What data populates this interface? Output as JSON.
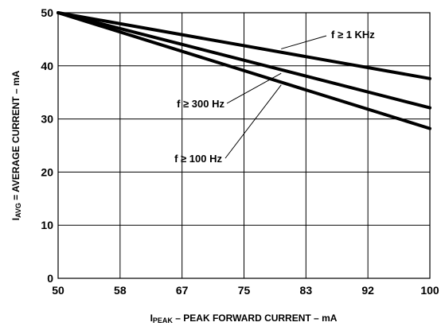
{
  "chart_data": {
    "type": "line",
    "x_ticks": [
      "50",
      "58",
      "67",
      "75",
      "83",
      "92",
      "100"
    ],
    "y_ticks": [
      "0",
      "10",
      "20",
      "30",
      "40",
      "50"
    ],
    "xlim": [
      50,
      100
    ],
    "ylim": [
      0,
      50
    ],
    "grid": true,
    "xlabel": {
      "main": "I",
      "sub": "PEAK",
      "rest": " – PEAK FORWARD CURRENT – mA"
    },
    "ylabel": {
      "main": "I",
      "sub": "AVG",
      "rest": " = AVERAGE CURRENT – mA"
    },
    "series": [
      {
        "x": [
          50,
          100
        ],
        "y": [
          50,
          37.6
        ]
      },
      {
        "x": [
          50,
          100
        ],
        "y": [
          50,
          32.1
        ]
      },
      {
        "x": [
          50,
          100
        ],
        "y": [
          50,
          28.2
        ]
      }
    ],
    "annotations": [
      {
        "text": "f ≥ 1 KHz",
        "point": [
          80,
          43.2
        ]
      },
      {
        "text": "f ≥ 300 Hz",
        "point": [
          80,
          38.6
        ]
      },
      {
        "text": "f ≥ 100 Hz",
        "point": [
          80,
          36.4
        ]
      }
    ]
  }
}
